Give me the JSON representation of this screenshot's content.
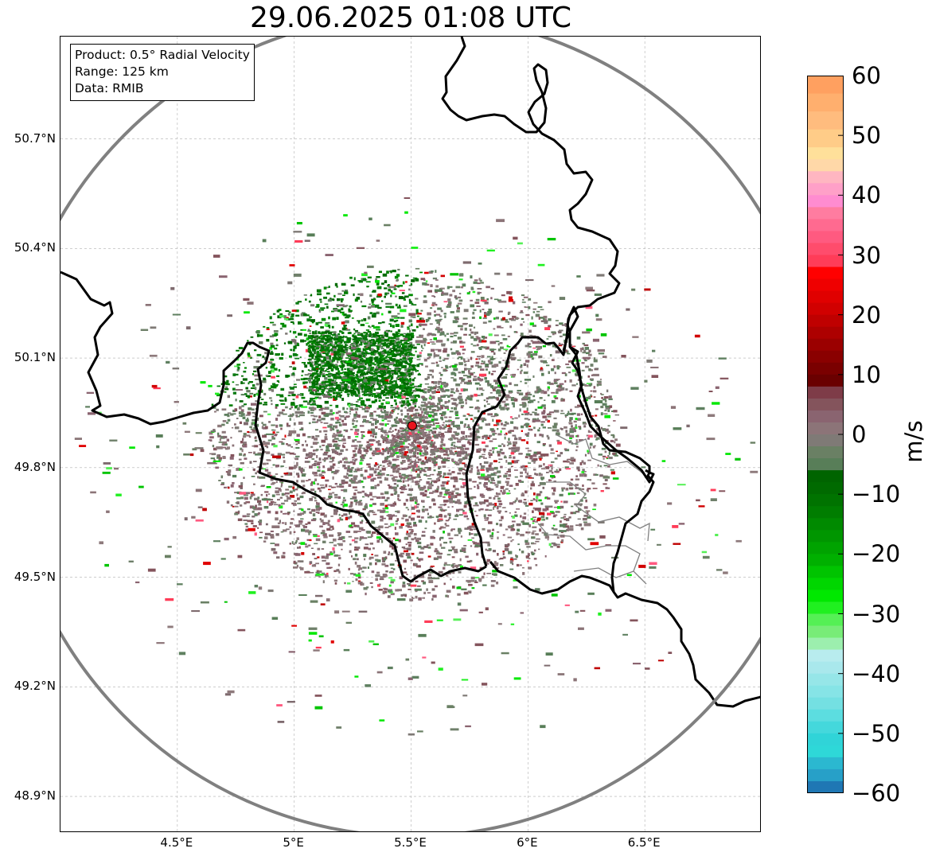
{
  "title": "29.06.2025 01:08 UTC",
  "info_box": {
    "product": "Product: 0.5° Radial Velocity",
    "range": "Range: 125 km",
    "data": "Data: RMIB"
  },
  "map": {
    "lon_range": [
      4.0,
      7.0
    ],
    "lat_range": [
      48.8,
      50.98
    ],
    "radar_site": {
      "lon": 5.505,
      "lat": 49.915
    },
    "range_ring_km": 125,
    "lat_ticks": [
      {
        "value": 48.9,
        "label": "48.9°N"
      },
      {
        "value": 49.2,
        "label": "49.2°N"
      },
      {
        "value": 49.5,
        "label": "49.5°N"
      },
      {
        "value": 49.8,
        "label": "49.8°N"
      },
      {
        "value": 50.1,
        "label": "50.1°N"
      },
      {
        "value": 50.4,
        "label": "50.4°N"
      },
      {
        "value": 50.7,
        "label": "50.7°N"
      }
    ],
    "lon_ticks": [
      {
        "value": 4.5,
        "label": "4.5°E"
      },
      {
        "value": 5.0,
        "label": "5°E"
      },
      {
        "value": 5.5,
        "label": "5.5°E"
      },
      {
        "value": 6.0,
        "label": "6°E"
      },
      {
        "value": 6.5,
        "label": "6.5°E"
      }
    ],
    "colors": {
      "border": "#000000",
      "province": "#808080",
      "range_ring": "#808080",
      "grid": "#b0b0b0",
      "radar_marker": "#e8141e"
    }
  },
  "colorbar": {
    "unit": "m/s",
    "min": -60,
    "max": 60,
    "tick_values": [
      60,
      50,
      40,
      30,
      20,
      10,
      0,
      -10,
      -20,
      -30,
      -40,
      -50,
      -60
    ],
    "tick_labels": [
      "60",
      "50",
      "40",
      "30",
      "20",
      "10",
      "0",
      "−10",
      "−20",
      "−30",
      "−40",
      "−50",
      "−60"
    ],
    "bands": [
      {
        "from": 57,
        "to": 60,
        "color": "#ffa060"
      },
      {
        "from": 54,
        "to": 57,
        "color": "#ffaf6e"
      },
      {
        "from": 51,
        "to": 54,
        "color": "#ffbc7e"
      },
      {
        "from": 48,
        "to": 51,
        "color": "#ffcc88"
      },
      {
        "from": 46,
        "to": 48,
        "color": "#ffe09a"
      },
      {
        "from": 44,
        "to": 46,
        "color": "#ffd8a8"
      },
      {
        "from": 42,
        "to": 44,
        "color": "#ffb6c1"
      },
      {
        "from": 40,
        "to": 42,
        "color": "#ffa0c8"
      },
      {
        "from": 38,
        "to": 40,
        "color": "#ff8cd0"
      },
      {
        "from": 36,
        "to": 38,
        "color": "#ff7ca0"
      },
      {
        "from": 34,
        "to": 36,
        "color": "#ff6a90"
      },
      {
        "from": 32,
        "to": 34,
        "color": "#ff5a80"
      },
      {
        "from": 30,
        "to": 32,
        "color": "#ff4c6c"
      },
      {
        "from": 28,
        "to": 30,
        "color": "#ff3c58"
      },
      {
        "from": 26,
        "to": 28,
        "color": "#ff0000"
      },
      {
        "from": 24,
        "to": 26,
        "color": "#ef0000"
      },
      {
        "from": 22,
        "to": 24,
        "color": "#e00000"
      },
      {
        "from": 20,
        "to": 22,
        "color": "#d10000"
      },
      {
        "from": 18,
        "to": 20,
        "color": "#bf0000"
      },
      {
        "from": 16,
        "to": 18,
        "color": "#ad0000"
      },
      {
        "from": 14,
        "to": 16,
        "color": "#9b0000"
      },
      {
        "from": 12,
        "to": 14,
        "color": "#8a0000"
      },
      {
        "from": 10,
        "to": 12,
        "color": "#7a0000"
      },
      {
        "from": 8,
        "to": 10,
        "color": "#6a0000"
      },
      {
        "from": 6,
        "to": 8,
        "color": "#7e3c48"
      },
      {
        "from": 4,
        "to": 6,
        "color": "#84545c"
      },
      {
        "from": 2,
        "to": 4,
        "color": "#8a6470"
      },
      {
        "from": 0,
        "to": 2,
        "color": "#8c7478"
      },
      {
        "from": -2,
        "to": 0,
        "color": "#7f7a76"
      },
      {
        "from": -4,
        "to": -2,
        "color": "#6a8064"
      },
      {
        "from": -6,
        "to": -4,
        "color": "#587e58"
      },
      {
        "from": -8,
        "to": -6,
        "color": "#006400"
      },
      {
        "from": -10,
        "to": -8,
        "color": "#006a00"
      },
      {
        "from": -12,
        "to": -10,
        "color": "#007300"
      },
      {
        "from": -14,
        "to": -12,
        "color": "#007d00"
      },
      {
        "from": -16,
        "to": -14,
        "color": "#008a00"
      },
      {
        "from": -18,
        "to": -16,
        "color": "#009600"
      },
      {
        "from": -20,
        "to": -18,
        "color": "#00a300"
      },
      {
        "from": -22,
        "to": -20,
        "color": "#00b000"
      },
      {
        "from": -24,
        "to": -22,
        "color": "#00c400"
      },
      {
        "from": -26,
        "to": -24,
        "color": "#00d600"
      },
      {
        "from": -28,
        "to": -26,
        "color": "#00e800"
      },
      {
        "from": -30,
        "to": -28,
        "color": "#20f020"
      },
      {
        "from": -32,
        "to": -30,
        "color": "#55f055"
      },
      {
        "from": -34,
        "to": -32,
        "color": "#78ec78"
      },
      {
        "from": -36,
        "to": -34,
        "color": "#9cefae"
      },
      {
        "from": -38,
        "to": -36,
        "color": "#b8ecee"
      },
      {
        "from": -40,
        "to": -38,
        "color": "#a9e8ec"
      },
      {
        "from": -42,
        "to": -40,
        "color": "#96e6e8"
      },
      {
        "from": -44,
        "to": -42,
        "color": "#86e4e6"
      },
      {
        "from": -46,
        "to": -44,
        "color": "#74e0e2"
      },
      {
        "from": -48,
        "to": -46,
        "color": "#5cdde0"
      },
      {
        "from": -50,
        "to": -48,
        "color": "#44d8dc"
      },
      {
        "from": -52,
        "to": -50,
        "color": "#30d4d8"
      },
      {
        "from": -54,
        "to": -52,
        "color": "#2ed8d8"
      },
      {
        "from": -56,
        "to": -54,
        "color": "#2bb8d0"
      },
      {
        "from": -58,
        "to": -56,
        "color": "#27a0c8"
      },
      {
        "from": -60,
        "to": -58,
        "color": "#1f77b4"
      }
    ]
  }
}
